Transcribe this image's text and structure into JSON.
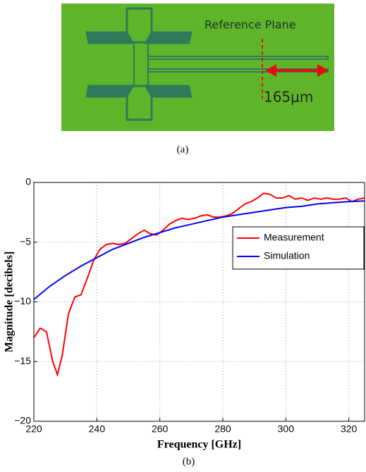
{
  "photo": {
    "annotation": "Reference Plane",
    "dimension": "165μm",
    "caption": "(a)"
  },
  "chart_data": {
    "type": "line",
    "caption": "(b)",
    "x_label": "Frequency [GHz]",
    "y_label": "Magnitude [decibels]",
    "xlim": [
      220,
      325
    ],
    "xticks": [
      220,
      240,
      260,
      280,
      300,
      320
    ],
    "ylim": [
      -20,
      0
    ],
    "yticks": [
      {
        "value": -20,
        "label": "−20"
      },
      {
        "value": -15,
        "label": "−15"
      },
      {
        "value": -10,
        "label": "−10"
      },
      {
        "value": -5,
        "label": "−5"
      },
      0
    ],
    "grid": true,
    "legend": "upper-right",
    "series": [
      {
        "name": "Measurement",
        "color": "#ff0000",
        "x": [
          220,
          222,
          224,
          226,
          227.5,
          229,
          231,
          233,
          235,
          237,
          239,
          241,
          243,
          245,
          247,
          249,
          251,
          253,
          255,
          257,
          259,
          261,
          263,
          265,
          267,
          269,
          271,
          273,
          275,
          277,
          279,
          281,
          283,
          285,
          287,
          289,
          291,
          293,
          295,
          297,
          299,
          301,
          303,
          305,
          307,
          309,
          311,
          313,
          315,
          317,
          319,
          321,
          323,
          325
        ],
        "values": [
          -13,
          -12.2,
          -12.5,
          -15,
          -16.1,
          -14.5,
          -11,
          -9.6,
          -9.4,
          -8,
          -6.5,
          -5.6,
          -5.2,
          -5.1,
          -5.2,
          -5.1,
          -4.7,
          -4.3,
          -4.0,
          -4.3,
          -4.4,
          -4.0,
          -3.5,
          -3.2,
          -3.0,
          -3.1,
          -3.0,
          -2.8,
          -2.7,
          -2.9,
          -2.9,
          -2.8,
          -2.6,
          -2.2,
          -1.8,
          -1.6,
          -1.3,
          -0.9,
          -1.0,
          -1.3,
          -1.3,
          -1.1,
          -1.4,
          -1.3,
          -1.5,
          -1.3,
          -1.4,
          -1.3,
          -1.4,
          -1.4,
          -1.3,
          -1.6,
          -1.4,
          -1.3
        ]
      },
      {
        "name": "Simulation",
        "color": "#0000ff",
        "x": [
          220,
          225,
          230,
          235,
          240,
          245,
          250,
          255,
          260,
          265,
          270,
          275,
          280,
          285,
          290,
          295,
          300,
          305,
          310,
          315,
          320,
          325
        ],
        "values": [
          -9.8,
          -8.7,
          -7.8,
          -7.0,
          -6.3,
          -5.6,
          -5.1,
          -4.6,
          -4.2,
          -3.8,
          -3.5,
          -3.2,
          -2.9,
          -2.7,
          -2.5,
          -2.3,
          -2.1,
          -2.0,
          -1.8,
          -1.7,
          -1.6,
          -1.55
        ]
      }
    ]
  }
}
